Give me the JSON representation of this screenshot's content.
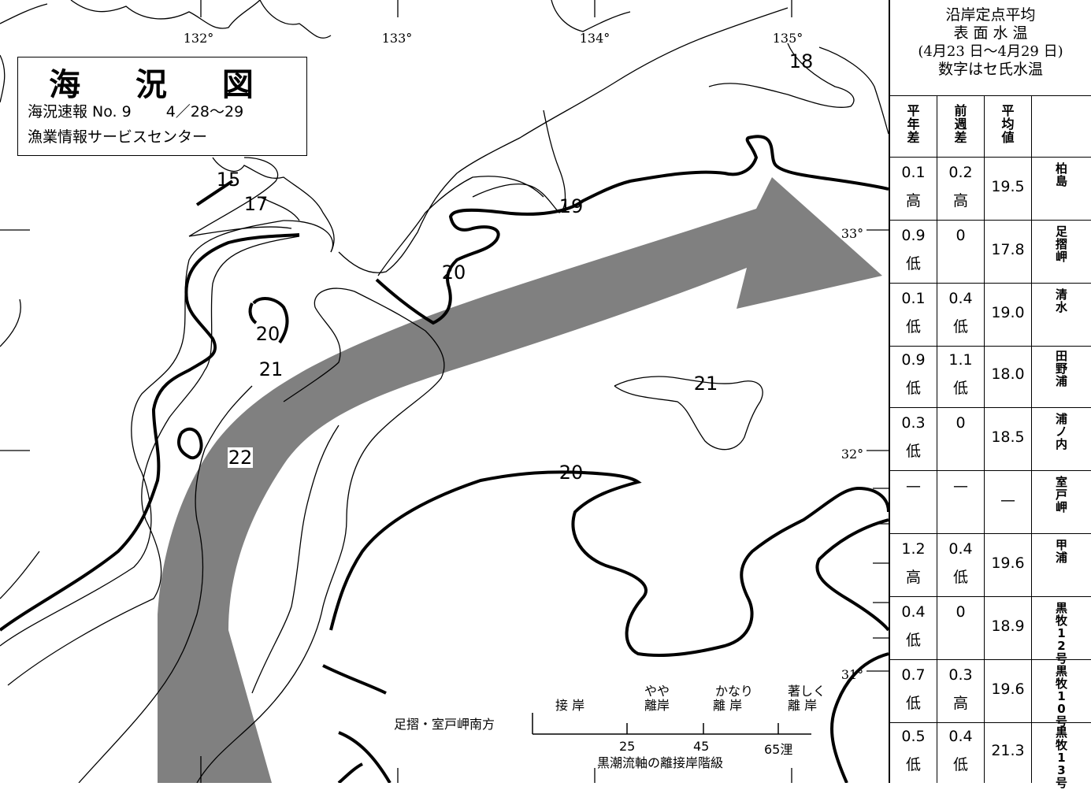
{
  "legend": {
    "title": "海 況 図",
    "report": "海況速報 No. 9",
    "dates": "4／28～29",
    "org": "漁業情報サービスセンター"
  },
  "lon_labels": [
    "132°",
    "133°",
    "134°",
    "135°"
  ],
  "lat_labels": [
    "33°",
    "32°",
    "31°"
  ],
  "contour_labels": [
    "15",
    "17",
    "18",
    "19",
    "20",
    "20",
    "20",
    "21",
    "21",
    "22"
  ],
  "table": {
    "header_lines": [
      "沿岸定点平均",
      "表 面 水 温",
      "(4月23 日～4月29 日)",
      "数字はセ氏水温"
    ],
    "col_year": "平年差",
    "col_week": "前週差",
    "col_avg": "平均値",
    "rows": [
      {
        "year": "0.1",
        "year_t": "高",
        "week": "0.2",
        "week_t": "高",
        "avg": "19.5",
        "name": "柏島"
      },
      {
        "year": "0.9",
        "year_t": "低",
        "week": "0",
        "week_t": "",
        "avg": "17.8",
        "name": "足摺岬"
      },
      {
        "year": "0.1",
        "year_t": "低",
        "week": "0.4",
        "week_t": "低",
        "avg": "19.0",
        "name": "清水"
      },
      {
        "year": "0.9",
        "year_t": "低",
        "week": "1.1",
        "week_t": "低",
        "avg": "18.0",
        "name": "田野浦"
      },
      {
        "year": "0.3",
        "year_t": "低",
        "week": "0",
        "week_t": "",
        "avg": "18.5",
        "name": "浦ノ内"
      },
      {
        "year": "—",
        "year_t": "",
        "week": "—",
        "week_t": "",
        "avg": "—",
        "name": "室戸岬"
      },
      {
        "year": "1.2",
        "year_t": "高",
        "week": "0.4",
        "week_t": "低",
        "avg": "19.6",
        "name": "甲浦"
      },
      {
        "year": "0.4",
        "year_t": "低",
        "week": "0",
        "week_t": "",
        "avg": "18.9",
        "name": "黒牧12号"
      },
      {
        "year": "0.7",
        "year_t": "低",
        "week": "0.3",
        "week_t": "高",
        "avg": "19.6",
        "name": "黒牧10号"
      },
      {
        "year": "0.5",
        "year_t": "低",
        "week": "0.4",
        "week_t": "低",
        "avg": "21.3",
        "name": "黒牧13号"
      }
    ]
  },
  "scale": {
    "label": "足摺・室戸岬南方",
    "cat1": "接 岸",
    "cat2a": "やや",
    "cat2b": "離岸",
    "cat3a": "かなり",
    "cat3b": "離 岸",
    "cat4a": "著しく",
    "cat4b": "離 岸",
    "t25": "25",
    "t45": "45",
    "t65": "65浬",
    "caption": "黒潮流軸の離接岸階級"
  },
  "colors": {
    "current_axis": "#808080",
    "line": "#000000",
    "land": "#ffffff"
  }
}
